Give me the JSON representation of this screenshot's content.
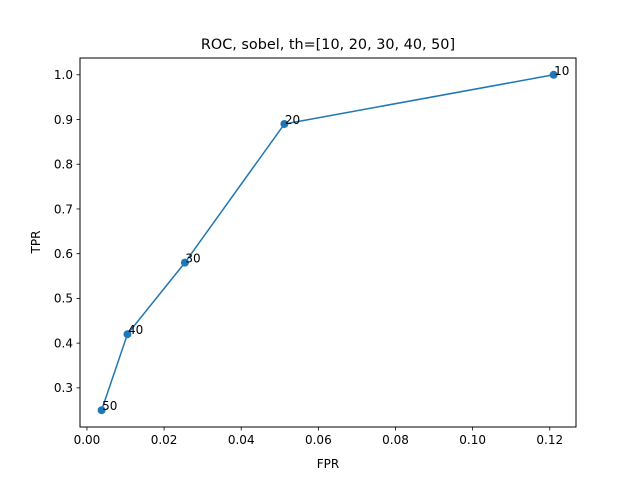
{
  "chart_data": {
    "type": "line",
    "title": "ROC, sobel, th=[10, 20, 30, 40, 50]",
    "xlabel": "FPR",
    "ylabel": "TPR",
    "xlim": [
      -0.0018,
      0.1268
    ],
    "ylim": [
      0.2125,
      1.0375
    ],
    "xticks": [
      0.0,
      0.02,
      0.04,
      0.06,
      0.08,
      0.1,
      0.12
    ],
    "xtick_labels": [
      "0.00",
      "0.02",
      "0.04",
      "0.06",
      "0.08",
      "0.10",
      "0.12"
    ],
    "yticks": [
      0.3,
      0.4,
      0.5,
      0.6,
      0.7,
      0.8,
      0.9,
      1.0
    ],
    "ytick_labels": [
      "0.3",
      "0.4",
      "0.5",
      "0.6",
      "0.7",
      "0.8",
      "0.9",
      "1.0"
    ],
    "grid": false,
    "color": "#1f77b4",
    "series": [
      {
        "x": [
          0.121,
          0.0512,
          0.0254,
          0.0105,
          0.0038
        ],
        "y": [
          1.0,
          0.89,
          0.58,
          0.42,
          0.25
        ],
        "point_labels": [
          "10",
          "20",
          "30",
          "40",
          "50"
        ]
      }
    ]
  }
}
